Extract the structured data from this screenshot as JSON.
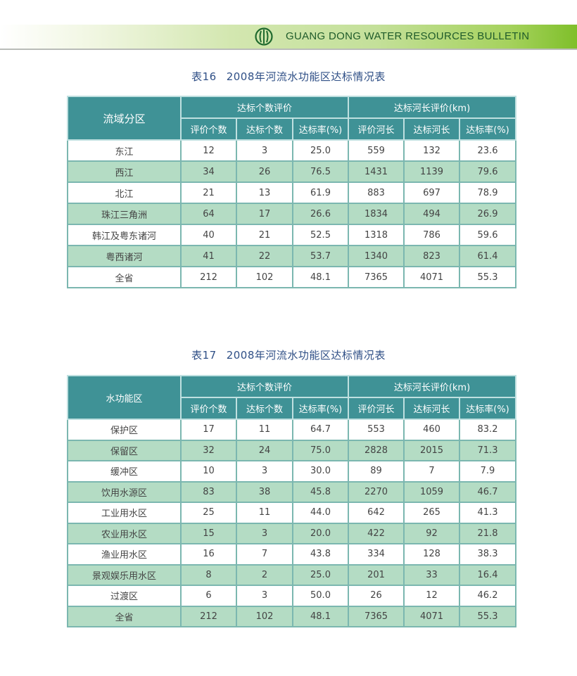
{
  "header": {
    "bulletin_title": "GUANG DONG WATER RESOURCES BULLETIN",
    "logo_icon": "water-bureau-logo-icon"
  },
  "colors": {
    "header_bg": "#3f9296",
    "alt_row": "#b4dcc4",
    "title_text": "#2f4f86"
  },
  "table16": {
    "number": "表16",
    "title": "2008年河流水功能区达标情况表",
    "first_col_header": "流域分区",
    "group1": "达标个数评价",
    "group2": "达标河长评价(km)",
    "subheaders": [
      "评价个数",
      "达标个数",
      "达标率(%)",
      "评价河长",
      "达标河长",
      "达标率(%)"
    ],
    "rows": [
      [
        "东江",
        "12",
        "3",
        "25.0",
        "559",
        "132",
        "23.6"
      ],
      [
        "西江",
        "34",
        "26",
        "76.5",
        "1431",
        "1139",
        "79.6"
      ],
      [
        "北江",
        "21",
        "13",
        "61.9",
        "883",
        "697",
        "78.9"
      ],
      [
        "珠江三角洲",
        "64",
        "17",
        "26.6",
        "1834",
        "494",
        "26.9"
      ],
      [
        "韩江及粤东诸河",
        "40",
        "21",
        "52.5",
        "1318",
        "786",
        "59.6"
      ],
      [
        "粤西诸河",
        "41",
        "22",
        "53.7",
        "1340",
        "823",
        "61.4"
      ],
      [
        "全省",
        "212",
        "102",
        "48.1",
        "7365",
        "4071",
        "55.3"
      ]
    ]
  },
  "table17": {
    "number": "表17",
    "title": "2008年河流水功能区达标情况表",
    "first_col_header": "水功能区",
    "group1": "达标个数评价",
    "group2": "达标河长评价(km)",
    "subheaders": [
      "评价个数",
      "达标个数",
      "达标率(%)",
      "评价河长",
      "达标河长",
      "达标率(%)"
    ],
    "rows": [
      [
        "保护区",
        "17",
        "11",
        "64.7",
        "553",
        "460",
        "83.2"
      ],
      [
        "保留区",
        "32",
        "24",
        "75.0",
        "2828",
        "2015",
        "71.3"
      ],
      [
        "缓冲区",
        "10",
        "3",
        "30.0",
        "89",
        "7",
        "7.9"
      ],
      [
        "饮用水源区",
        "83",
        "38",
        "45.8",
        "2270",
        "1059",
        "46.7"
      ],
      [
        "工业用水区",
        "25",
        "11",
        "44.0",
        "642",
        "265",
        "41.3"
      ],
      [
        "农业用水区",
        "15",
        "3",
        "20.0",
        "422",
        "92",
        "21.8"
      ],
      [
        "渔业用水区",
        "16",
        "7",
        "43.8",
        "334",
        "128",
        "38.3"
      ],
      [
        "景观娱乐用水区",
        "8",
        "2",
        "25.0",
        "201",
        "33",
        "16.4"
      ],
      [
        "过渡区",
        "6",
        "3",
        "50.0",
        "26",
        "12",
        "46.2"
      ],
      [
        "全省",
        "212",
        "102",
        "48.1",
        "7365",
        "4071",
        "55.3"
      ]
    ]
  }
}
